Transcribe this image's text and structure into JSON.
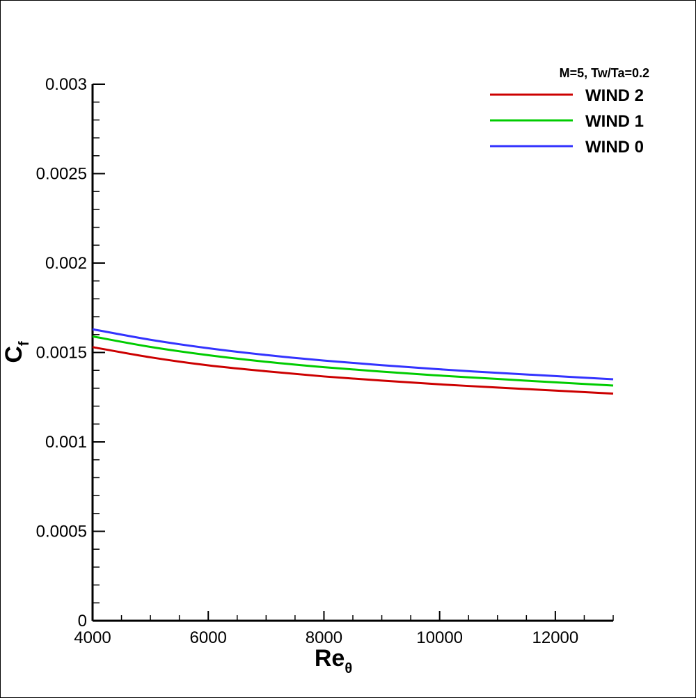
{
  "chart_data": {
    "type": "line",
    "title": "",
    "legend_title": "M=5, Tw/Ta=0.2",
    "legend_position": "top-right",
    "xlabel": "Re",
    "xlabel_sub": "θ",
    "ylabel": "C",
    "ylabel_sub": "f",
    "xlim": [
      4000,
      13000
    ],
    "ylim": [
      0,
      0.003
    ],
    "grid": false,
    "x_ticks": [
      4000,
      6000,
      8000,
      10000,
      12000
    ],
    "x_tick_labels": [
      "4000",
      "6000",
      "8000",
      "10000",
      "12000"
    ],
    "y_ticks": [
      0,
      0.0005,
      0.001,
      0.0015,
      0.002,
      0.0025,
      0.003
    ],
    "y_tick_labels": [
      "0",
      "0.0005",
      "0.001",
      "0.0015",
      "0.002",
      "0.0025",
      "0.003"
    ],
    "x": [
      4000,
      5000,
      6000,
      7000,
      8000,
      9000,
      10000,
      11000,
      12000,
      13000
    ],
    "series": [
      {
        "name": "WIND 2",
        "color": "#cc0000",
        "values": [
          0.00153,
          0.001473,
          0.001428,
          0.001395,
          0.001366,
          0.001343,
          0.001322,
          0.001304,
          0.001287,
          0.00127
        ]
      },
      {
        "name": "WIND 1",
        "color": "#00cc00",
        "values": [
          0.00159,
          0.001531,
          0.001485,
          0.001448,
          0.001418,
          0.001393,
          0.001371,
          0.001352,
          0.001333,
          0.001315
        ]
      },
      {
        "name": "WIND 0",
        "color": "#3333ff",
        "values": [
          0.00163,
          0.001571,
          0.001524,
          0.001486,
          0.001455,
          0.001429,
          0.001406,
          0.001386,
          0.001368,
          0.00135
        ]
      }
    ]
  }
}
